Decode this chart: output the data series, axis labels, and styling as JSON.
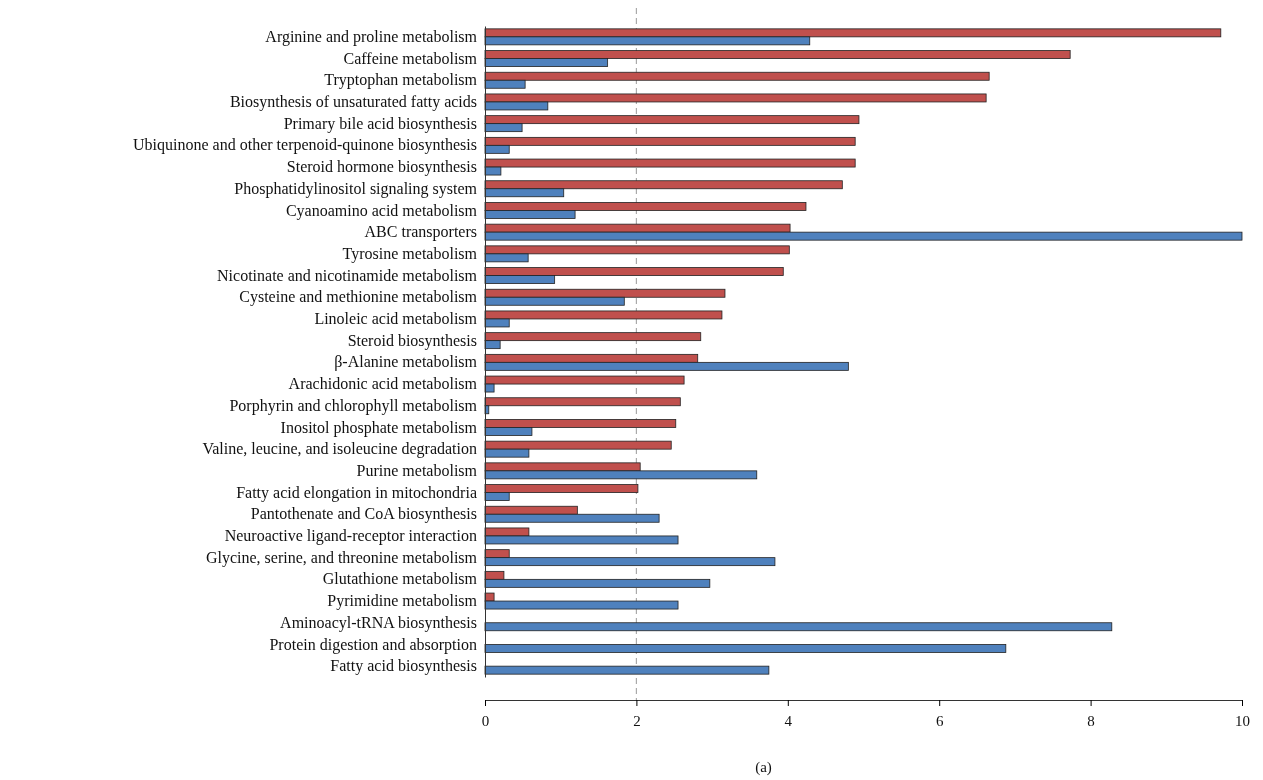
{
  "chart_data": {
    "type": "bar",
    "orientation": "horizontal",
    "categories": [
      "Arginine and proline metabolism",
      "Caffeine metabolism",
      "Tryptophan metabolism",
      "Biosynthesis of unsaturated fatty acids",
      "Primary bile acid biosynthesis",
      "Ubiquinone and other terpenoid-quinone biosynthesis",
      "Steroid hormone biosynthesis",
      "Phosphatidylinositol signaling system",
      "Cyanoamino acid metabolism",
      "ABC transporters",
      "Tyrosine metabolism",
      "Nicotinate and nicotinamide metabolism",
      "Cysteine and methionine metabolism",
      "Linoleic acid metabolism",
      "Steroid biosynthesis",
      "β-Alanine metabolism",
      "Arachidonic acid metabolism",
      "Porphyrin and chlorophyll metabolism",
      "Inositol phosphate metabolism",
      "Valine, leucine, and isoleucine degradation",
      "Purine metabolism",
      "Fatty acid elongation in mitochondria",
      "Pantothenate and CoA biosynthesis",
      "Neuroactive ligand-receptor interaction",
      "Glycine, serine, and threonine metabolism",
      "Glutathione metabolism",
      "Pyrimidine metabolism",
      "Aminoacyl-tRNA biosynthesis",
      "Protein digestion and absorption",
      "Fatty acid biosynthesis"
    ],
    "series": [
      {
        "color": "#c0504d",
        "values": [
          9.72,
          7.73,
          6.66,
          6.62,
          4.94,
          4.89,
          4.89,
          4.72,
          4.24,
          4.03,
          4.02,
          3.94,
          3.17,
          3.13,
          2.85,
          2.81,
          2.63,
          2.58,
          2.52,
          2.46,
          2.05,
          2.02,
          1.22,
          0.58,
          0.32,
          0.25,
          0.12,
          0,
          0,
          0
        ]
      },
      {
        "color": "#4f81bd",
        "values": [
          4.29,
          1.62,
          0.53,
          0.83,
          0.49,
          0.32,
          0.21,
          1.04,
          1.19,
          10.0,
          0.57,
          0.92,
          1.84,
          0.32,
          0.2,
          4.8,
          0.12,
          0.05,
          0.62,
          0.58,
          3.59,
          0.32,
          2.3,
          2.55,
          3.83,
          2.97,
          2.55,
          8.28,
          6.88,
          3.75
        ]
      }
    ],
    "xlim": [
      0,
      10
    ],
    "xticks": [
      0,
      2,
      4,
      6,
      8,
      10
    ],
    "ref_lines": [
      {
        "axis": "x",
        "value": 2,
        "color": "#aaaaaa",
        "line_style": "dashed"
      }
    ],
    "annotations": [
      "(a)"
    ],
    "grid": false
  }
}
